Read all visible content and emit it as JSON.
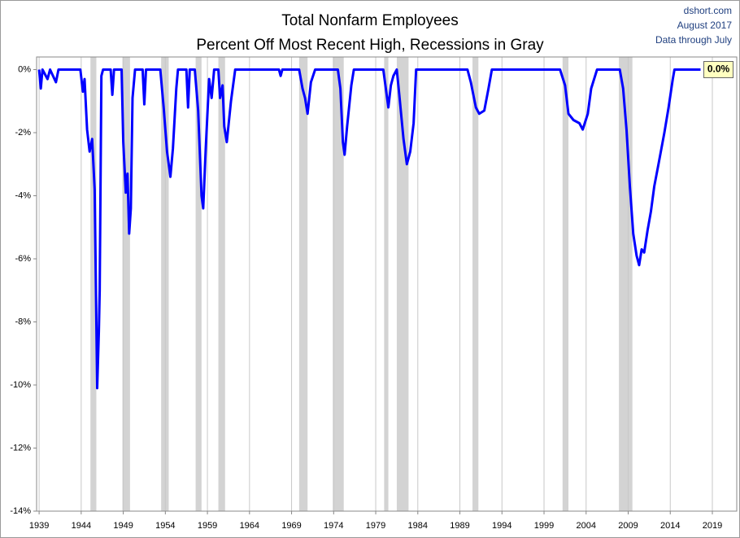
{
  "chart_data": {
    "type": "line",
    "title": "Total Nonfarm Employees",
    "subtitle": "Percent Off Most Recent High, Recessions in Gray",
    "source": [
      "dshort.com",
      "August 2017",
      "Data through July"
    ],
    "end_label": "0.0%",
    "color": "#0000ff",
    "recession_color": "#d3d3d3",
    "recessions": [
      [
        1945.1,
        1945.8
      ],
      [
        1948.9,
        1949.8
      ],
      [
        1953.5,
        1954.4
      ],
      [
        1957.6,
        1958.3
      ],
      [
        1960.3,
        1961.1
      ],
      [
        1969.9,
        1970.9
      ],
      [
        1973.9,
        1975.2
      ],
      [
        1980.0,
        1980.5
      ],
      [
        1981.5,
        1982.9
      ],
      [
        1990.5,
        1991.2
      ],
      [
        2001.2,
        2001.9
      ],
      [
        2007.9,
        2009.5
      ]
    ],
    "x": [
      1939.0,
      1939.2,
      1939.4,
      1940.0,
      1940.3,
      1941.0,
      1941.3,
      1943.9,
      1944.2,
      1944.4,
      1944.7,
      1945.0,
      1945.3,
      1945.6,
      1945.9,
      1946.1,
      1946.2,
      1946.4,
      1946.6,
      1947.5,
      1947.7,
      1947.9,
      1948.8,
      1949.0,
      1949.3,
      1949.5,
      1949.7,
      1949.9,
      1950.1,
      1950.4,
      1951.3,
      1951.5,
      1951.7,
      1953.4,
      1953.8,
      1954.2,
      1954.6,
      1954.9,
      1955.3,
      1955.5,
      1956.5,
      1956.7,
      1956.9,
      1957.5,
      1957.9,
      1958.3,
      1958.5,
      1958.8,
      1959.2,
      1959.5,
      1959.8,
      1960.3,
      1960.5,
      1960.8,
      1961.0,
      1961.3,
      1961.8,
      1962.3,
      1967.5,
      1967.7,
      1967.9,
      1969.9,
      1970.3,
      1970.6,
      1970.9,
      1971.3,
      1971.8,
      1974.5,
      1974.8,
      1975.1,
      1975.3,
      1975.6,
      1976.1,
      1976.4,
      1979.9,
      1980.2,
      1980.5,
      1980.8,
      1981.1,
      1981.5,
      1981.8,
      1982.3,
      1982.7,
      1983.1,
      1983.5,
      1983.8,
      1989.9,
      1990.3,
      1990.9,
      1991.3,
      1991.9,
      1992.4,
      1992.8,
      2000.9,
      2001.5,
      2001.9,
      2002.5,
      2003.2,
      2003.6,
      2004.2,
      2004.6,
      2005.3,
      2008.0,
      2008.4,
      2008.8,
      2009.2,
      2009.6,
      2010.0,
      2010.3,
      2010.6,
      2010.9,
      2011.3,
      2011.7,
      2012.1,
      2012.6,
      2013.3,
      2013.8,
      2014.3,
      2014.5,
      2017.6
    ],
    "values": [
      0,
      -0.6,
      0,
      -0.3,
      0,
      -0.4,
      0,
      0,
      -0.7,
      -0.3,
      -1.9,
      -2.6,
      -2.2,
      -3.8,
      -10.1,
      -8.3,
      -7.0,
      -0.2,
      0,
      0,
      -0.8,
      0,
      0,
      -2.3,
      -3.9,
      -3.3,
      -5.2,
      -4.4,
      -0.9,
      0,
      0,
      -1.1,
      0,
      0,
      -1.2,
      -2.6,
      -3.4,
      -2.5,
      -0.6,
      0,
      0,
      -1.2,
      0,
      0,
      -1.3,
      -4.0,
      -4.4,
      -2.5,
      -0.3,
      -0.9,
      0,
      0,
      -0.9,
      -0.5,
      -1.8,
      -2.3,
      -1.0,
      0,
      0,
      -0.2,
      0,
      0,
      -0.6,
      -0.9,
      -1.4,
      -0.4,
      0,
      0,
      -0.6,
      -2.3,
      -2.7,
      -1.8,
      -0.5,
      0,
      0,
      -0.6,
      -1.2,
      -0.5,
      -0.2,
      0,
      -0.8,
      -2.2,
      -3.0,
      -2.6,
      -1.7,
      0,
      0,
      -0.4,
      -1.2,
      -1.4,
      -1.3,
      -0.6,
      0,
      0,
      -0.5,
      -1.4,
      -1.6,
      -1.7,
      -1.9,
      -1.4,
      -0.6,
      0,
      0,
      -0.6,
      -1.9,
      -3.7,
      -5.2,
      -5.9,
      -6.2,
      -5.7,
      -5.8,
      -5.1,
      -4.5,
      -3.7,
      -3.0,
      -2.0,
      -1.2,
      -0.3,
      0,
      0
    ],
    "xlim": [
      1938.7,
      2021.9
    ],
    "xticks": [
      1939,
      1944,
      1949,
      1954,
      1959,
      1964,
      1969,
      1974,
      1979,
      1984,
      1989,
      1994,
      1999,
      2004,
      2009,
      2014,
      2019
    ],
    "ylim": [
      -14,
      0.4
    ],
    "yticks": [
      {
        "value": 0,
        "label": "0%"
      },
      {
        "value": -2,
        "label": "-2%"
      },
      {
        "value": -4,
        "label": "-4%"
      },
      {
        "value": -6,
        "label": "-6%"
      },
      {
        "value": -8,
        "label": "-8%"
      },
      {
        "value": -10,
        "label": "-10%"
      },
      {
        "value": -12,
        "label": "-12%"
      },
      {
        "value": -14,
        "label": "-14%"
      }
    ],
    "grid": "x"
  }
}
